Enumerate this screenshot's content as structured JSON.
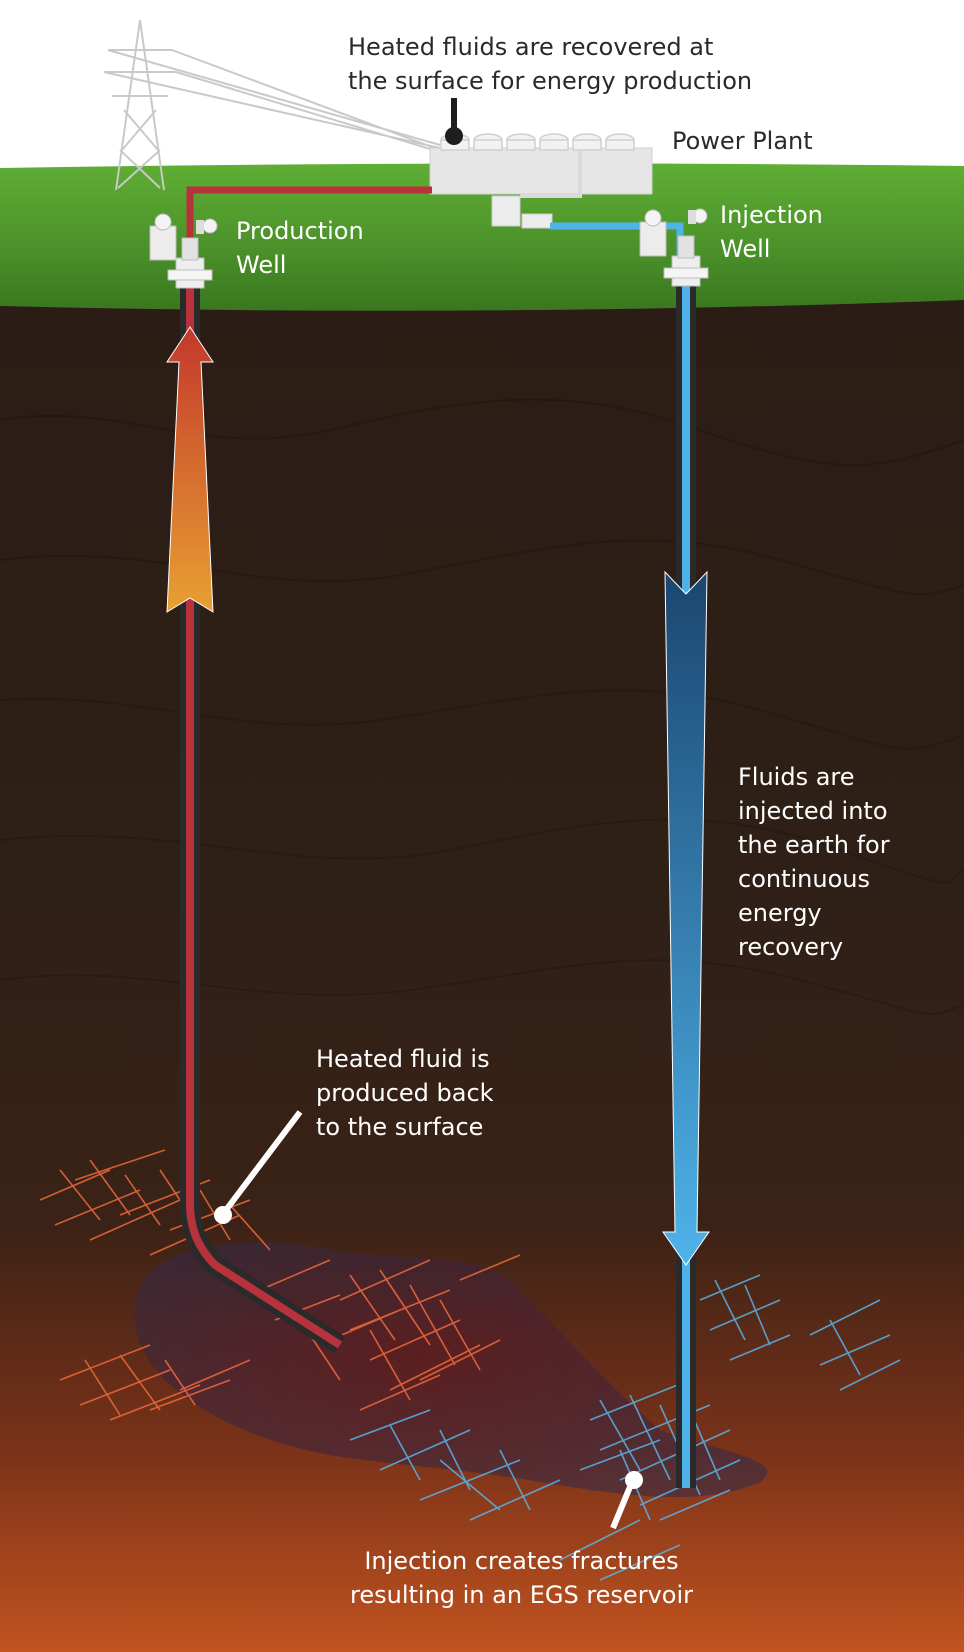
{
  "labels": {
    "surface_callout": "Heated fluids are recovered at\nthe surface for energy production",
    "power_plant": "Power Plant",
    "production_well": "Production\nWell",
    "injection_well": "Injection\nWell",
    "injected_fluids": "Fluids are\ninjected into\nthe earth for\ncontinuous\nenergy\nrecovery",
    "produced_fluid": "Heated fluid is\nproduced back\nto the surface",
    "reservoir": "Injection creates fractures\nresulting in an EGS reservoir"
  },
  "colors": {
    "grass": "#4f9a2c",
    "soil_dark": "#2b1d15",
    "soil_hot": "#b24a1f",
    "production_pipe": "#b7323a",
    "injection_pipe": "#4fb3ea",
    "hot_fracture": "#f06a3c",
    "cold_fracture": "#59b4e8"
  },
  "icons": [
    "transmission-tower-icon",
    "power-plant-icon",
    "wellhead-valve-icon"
  ]
}
